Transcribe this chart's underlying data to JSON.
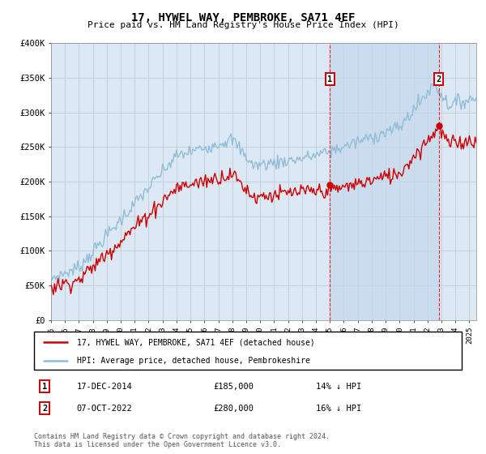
{
  "title": "17, HYWEL WAY, PEMBROKE, SA71 4EF",
  "subtitle": "Price paid vs. HM Land Registry's House Price Index (HPI)",
  "ylim": [
    0,
    400000
  ],
  "xlim_start": 1995.0,
  "xlim_end": 2025.5,
  "hpi_color": "#92BDD8",
  "price_color": "#CC0000",
  "bg_color": "#DCE8F4",
  "shade_color": "#C5D8EC",
  "grid_color": "#BBCCD8",
  "marker1_date_num": 2015.0,
  "marker2_date_num": 2022.8,
  "legend_label1": "17, HYWEL WAY, PEMBROKE, SA71 4EF (detached house)",
  "legend_label2": "HPI: Average price, detached house, Pembrokeshire",
  "note1_date": "17-DEC-2014",
  "note1_price": "£185,000",
  "note1_hpi": "14% ↓ HPI",
  "note2_date": "07-OCT-2022",
  "note2_price": "£280,000",
  "note2_hpi": "16% ↓ HPI",
  "footer": "Contains HM Land Registry data © Crown copyright and database right 2024.\nThis data is licensed under the Open Government Licence v3.0."
}
